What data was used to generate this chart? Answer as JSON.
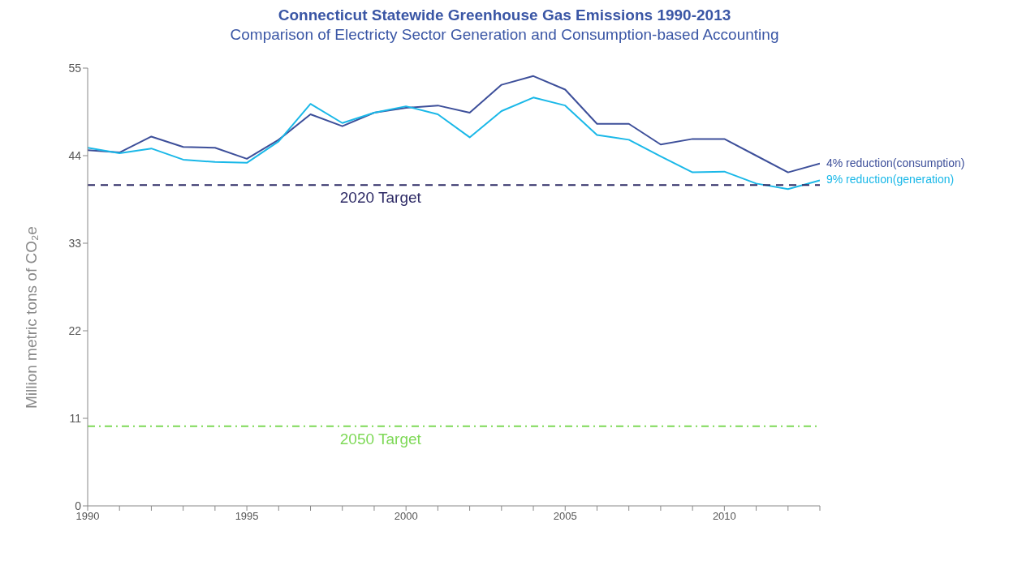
{
  "chart_data": {
    "type": "line",
    "title": "Connecticut Statewide Greenhouse Gas Emissions 1990-2013",
    "subtitle": "Comparison of Electricty Sector Generation and Consumption-based Accounting",
    "ylabel": "Million metric tons of CO₂e",
    "x": [
      1990,
      1991,
      1992,
      1993,
      1994,
      1995,
      1996,
      1997,
      1998,
      1999,
      2000,
      2001,
      2002,
      2003,
      2004,
      2005,
      2006,
      2007,
      2008,
      2009,
      2010,
      2011,
      2012,
      2013
    ],
    "series": [
      {
        "name": "4% reduction(consumption)",
        "color": "#3d4f9a",
        "values": [
          44.7,
          44.4,
          46.4,
          45.1,
          45.0,
          43.6,
          46.0,
          49.2,
          47.7,
          49.4,
          50.0,
          50.3,
          49.4,
          52.9,
          54.0,
          52.3,
          48.0,
          48.0,
          45.4,
          46.1,
          46.1,
          44.0,
          41.9,
          43.0
        ]
      },
      {
        "name": "9% reduction(generation)",
        "color": "#1ab8e8",
        "values": [
          45.0,
          44.3,
          44.9,
          43.5,
          43.2,
          43.1,
          45.8,
          50.5,
          48.1,
          49.4,
          50.2,
          49.2,
          46.3,
          49.6,
          51.3,
          50.3,
          46.6,
          46.0,
          43.9,
          41.9,
          42.0,
          40.5,
          39.8,
          40.9
        ]
      }
    ],
    "xlim": [
      1990,
      2013
    ],
    "xticks": [
      1990,
      {
        "value": 1991,
        "label": null
      },
      {
        "value": 1992,
        "label": null
      },
      {
        "value": 1993,
        "label": null
      },
      {
        "value": 1994,
        "label": null
      },
      1995,
      {
        "value": 1996,
        "label": null
      },
      {
        "value": 1997,
        "label": null
      },
      {
        "value": 1998,
        "label": null
      },
      {
        "value": 1999,
        "label": null
      },
      2000,
      {
        "value": 2001,
        "label": null
      },
      {
        "value": 2002,
        "label": null
      },
      {
        "value": 2003,
        "label": null
      },
      {
        "value": 2004,
        "label": null
      },
      2005,
      {
        "value": 2006,
        "label": null
      },
      {
        "value": 2007,
        "label": null
      },
      {
        "value": 2008,
        "label": null
      },
      {
        "value": 2009,
        "label": null
      },
      2010,
      {
        "value": 2011,
        "label": null
      },
      {
        "value": 2012,
        "label": null
      },
      {
        "value": 2013,
        "label": null
      }
    ],
    "ylim": [
      0,
      55
    ],
    "yticks": [
      0,
      11,
      22,
      33,
      44,
      55
    ],
    "ref_lines": [
      {
        "axis": "y",
        "value": 40.3,
        "label": "2020 Target",
        "color": "#2e2b66",
        "line_style": "dashed"
      },
      {
        "axis": "y",
        "value": 10,
        "label": "2050 Target",
        "color": "#7ed957",
        "line_style": "dashdot"
      }
    ],
    "marker": "none",
    "line_style": "solid"
  }
}
